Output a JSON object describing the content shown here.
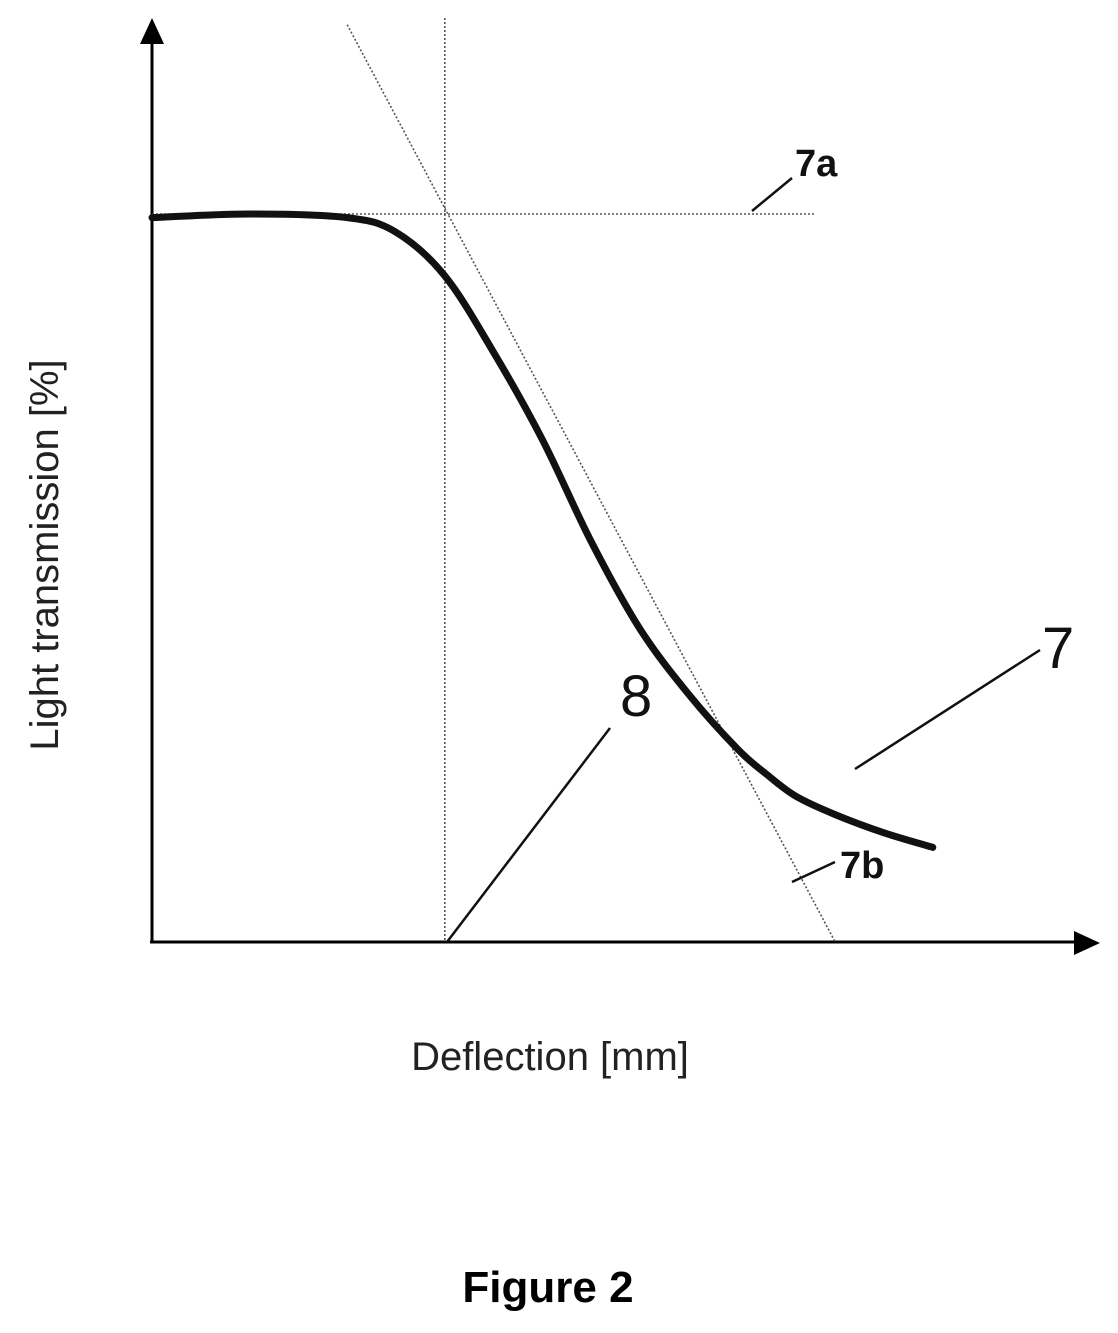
{
  "chart_data": {
    "type": "line",
    "title": "",
    "xlabel": "Deflection [mm]",
    "ylabel": "Light transmission [%]",
    "xlim": [
      0,
      1
    ],
    "ylim": [
      0,
      1
    ],
    "grid": false,
    "series": [
      {
        "label": "7",
        "x": [
          0.0,
          0.1,
          0.2,
          0.25,
          0.3,
          0.35,
          0.4,
          0.45,
          0.5,
          0.55,
          0.6,
          0.63,
          0.66,
          0.7,
          0.75,
          0.8
        ],
        "y": [
          0.995,
          1.0,
          0.995,
          0.975,
          0.915,
          0.81,
          0.69,
          0.55,
          0.43,
          0.34,
          0.265,
          0.23,
          0.2,
          0.175,
          0.15,
          0.13
        ]
      }
    ],
    "reference_lines": [
      {
        "label": "7a",
        "kind": "horizontal",
        "y": 1.0,
        "x_range": [
          0,
          0.68
        ]
      },
      {
        "label": "7b",
        "kind": "tangent",
        "points": [
          [
            0.2,
            1.26
          ],
          [
            0.7,
            0.0
          ]
        ]
      },
      {
        "label": "8",
        "kind": "vertical",
        "x": 0.3
      }
    ],
    "callouts": [
      "7",
      "7a",
      "7b",
      "8"
    ]
  },
  "caption": "Figure 2"
}
